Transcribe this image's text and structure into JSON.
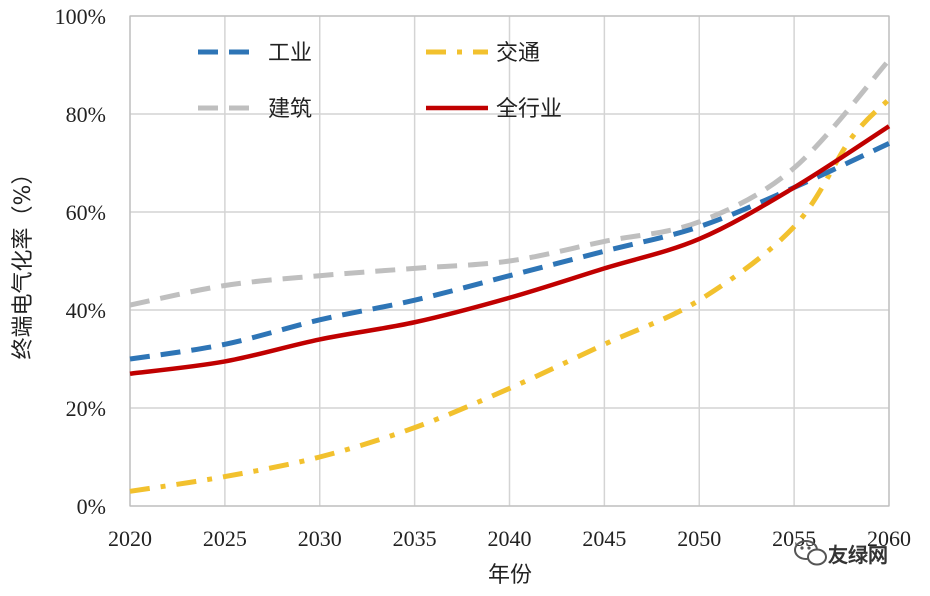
{
  "chart_data": {
    "type": "line",
    "title": "",
    "xlabel": "年份",
    "ylabel": "终端电气化率（%）",
    "x_ticks": [
      "2020",
      "2025",
      "2030",
      "2035",
      "2040",
      "2045",
      "2050",
      "2055",
      "2060"
    ],
    "y_ticks": [
      "0%",
      "20%",
      "40%",
      "60%",
      "80%",
      "100%"
    ],
    "xlim": [
      2020,
      2060
    ],
    "ylim": [
      0,
      100
    ],
    "grid": true,
    "legend_position": "top-left",
    "series": [
      {
        "name": "工业",
        "color": "#2e75b6",
        "style": "dashed",
        "x": [
          2020,
          2025,
          2030,
          2035,
          2040,
          2045,
          2050,
          2055,
          2060
        ],
        "y": [
          30,
          33,
          38,
          42,
          47,
          52,
          57,
          65,
          74
        ]
      },
      {
        "name": "交通",
        "color": "#f2c12e",
        "style": "dash-dot",
        "x": [
          2020,
          2025,
          2030,
          2035,
          2040,
          2045,
          2050,
          2055,
          2058,
          2060
        ],
        "y": [
          3,
          6,
          10,
          16,
          24,
          33,
          42,
          57,
          75,
          83
        ]
      },
      {
        "name": "建筑",
        "color": "#bfbfbf",
        "style": "dashed",
        "x": [
          2020,
          2025,
          2030,
          2035,
          2040,
          2045,
          2050,
          2055,
          2060
        ],
        "y": [
          41,
          45,
          47,
          48.5,
          50,
          54,
          58,
          69,
          91
        ]
      },
      {
        "name": "全行业",
        "color": "#c00000",
        "style": "solid",
        "x": [
          2020,
          2025,
          2030,
          2035,
          2040,
          2045,
          2050,
          2055,
          2060
        ],
        "y": [
          27,
          29.5,
          34,
          37.5,
          42.5,
          48.5,
          54.5,
          65,
          77.5
        ]
      }
    ]
  },
  "watermark": {
    "text": "友绿网",
    "icon": "wechat-icon"
  }
}
